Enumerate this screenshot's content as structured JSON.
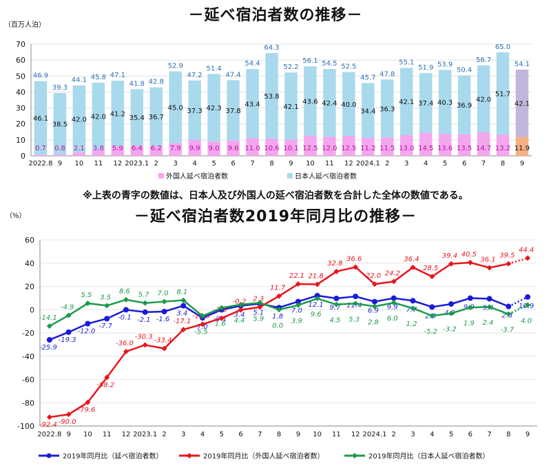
{
  "chart_data": [
    {
      "type": "bar",
      "title": "－延べ宿泊者数の推移－",
      "ylabel": "（百万人泊）",
      "ylim": [
        0,
        70
      ],
      "yticks": [
        0,
        10,
        20,
        30,
        40,
        50,
        60,
        70
      ],
      "categories": [
        "2022.8",
        "9",
        "10",
        "11",
        "12",
        "2023.1",
        "2",
        "3",
        "4",
        "5",
        "6",
        "7",
        "8",
        "9",
        "10",
        "11",
        "12",
        "2024.1",
        "2",
        "3",
        "4",
        "5",
        "6",
        "7",
        "8",
        "9"
      ],
      "series": [
        {
          "name": "外国人延べ宿泊者数",
          "values": [
            0.7,
            0.8,
            2.1,
            3.8,
            5.9,
            6.4,
            6.2,
            7.9,
            9.9,
            9.0,
            9.6,
            11.0,
            10.6,
            10.1,
            12.5,
            12.0,
            12.5,
            11.2,
            11.5,
            13.0,
            14.5,
            13.6,
            13.5,
            14.7,
            13.2,
            11.9
          ]
        },
        {
          "name": "日本人延べ宿泊者数",
          "values": [
            46.1,
            38.5,
            42.0,
            42.0,
            41.2,
            35.4,
            36.7,
            45.0,
            37.3,
            42.3,
            37.8,
            43.4,
            53.8,
            42.1,
            43.6,
            42.4,
            40.0,
            34.4,
            36.3,
            42.1,
            37.4,
            40.3,
            36.9,
            42.0,
            51.7,
            42.1
          ]
        }
      ],
      "totals": [
        46.9,
        39.3,
        44.1,
        45.8,
        47.1,
        41.8,
        42.8,
        52.9,
        47.2,
        51.4,
        47.4,
        54.4,
        64.3,
        52.2,
        56.1,
        54.5,
        52.5,
        45.7,
        47.8,
        55.1,
        51.9,
        53.9,
        50.4,
        56.7,
        65.0,
        54.1
      ],
      "colors": {
        "foreign": "#f4a6ef",
        "japanese": "#a9d9ec",
        "total_label": "#2a6fb5",
        "preliminary_foreign": "#f4b183",
        "preliminary_japanese": "#c3b6dc"
      }
    },
    {
      "type": "line",
      "title": "－延べ宿泊者数2019年同月比の推移－",
      "ylabel": "（%）",
      "ylim": [
        -100,
        60
      ],
      "yticks": [
        60,
        40,
        20,
        0,
        -20,
        -40,
        -60,
        -80,
        -100
      ],
      "categories": [
        "2022.8",
        "9",
        "10",
        "11",
        "12",
        "2023.1",
        "2",
        "3",
        "4",
        "5",
        "6",
        "7",
        "8",
        "9",
        "10",
        "11",
        "12",
        "2024.1",
        "2",
        "3",
        "4",
        "5",
        "6",
        "7",
        "8",
        "9"
      ],
      "series": [
        {
          "name": "2019年同月比（延べ宿泊者数）",
          "color": "#1a1adb",
          "values": [
            -25.9,
            -19.3,
            -12.0,
            -7.7,
            -0.1,
            -2.1,
            -1.6,
            3.4,
            -7.0,
            -0.1,
            3.4,
            5.1,
            1.8,
            7.0,
            12.1,
            9.7,
            11.4,
            6.9,
            9.9,
            7.7,
            2.3,
            4.9,
            9.9,
            9.4,
            2.8,
            10.9
          ]
        },
        {
          "name": "2019年同月比（外国人延べ宿泊者数）",
          "color": "#e8141c",
          "values": [
            -92.4,
            -90.0,
            -79.6,
            -58.2,
            -36.0,
            -30.3,
            -33.4,
            -17.1,
            -12.5,
            -7.3,
            -0.2,
            2.3,
            11.7,
            22.1,
            21.8,
            32.8,
            36.6,
            22.0,
            24.2,
            36.4,
            28.5,
            39.4,
            40.5,
            36.1,
            39.5,
            44.4
          ]
        },
        {
          "name": "2019年同月比（日本人延べ宿泊者数）",
          "color": "#1a9a4a",
          "values": [
            -14.1,
            -4.9,
            5.5,
            3.5,
            8.6,
            5.7,
            7.0,
            8.1,
            -5.5,
            1.6,
            4.4,
            5.9,
            0.0,
            3.9,
            9.6,
            4.5,
            5.3,
            2.8,
            6.0,
            1.2,
            -5.2,
            -3.2,
            1.9,
            2.4,
            -3.7,
            4.0
          ]
        }
      ]
    }
  ],
  "note": "※上表の青字の数値は、日本人及び外国人の延べ宿泊者数を合計した全体の数値である。"
}
